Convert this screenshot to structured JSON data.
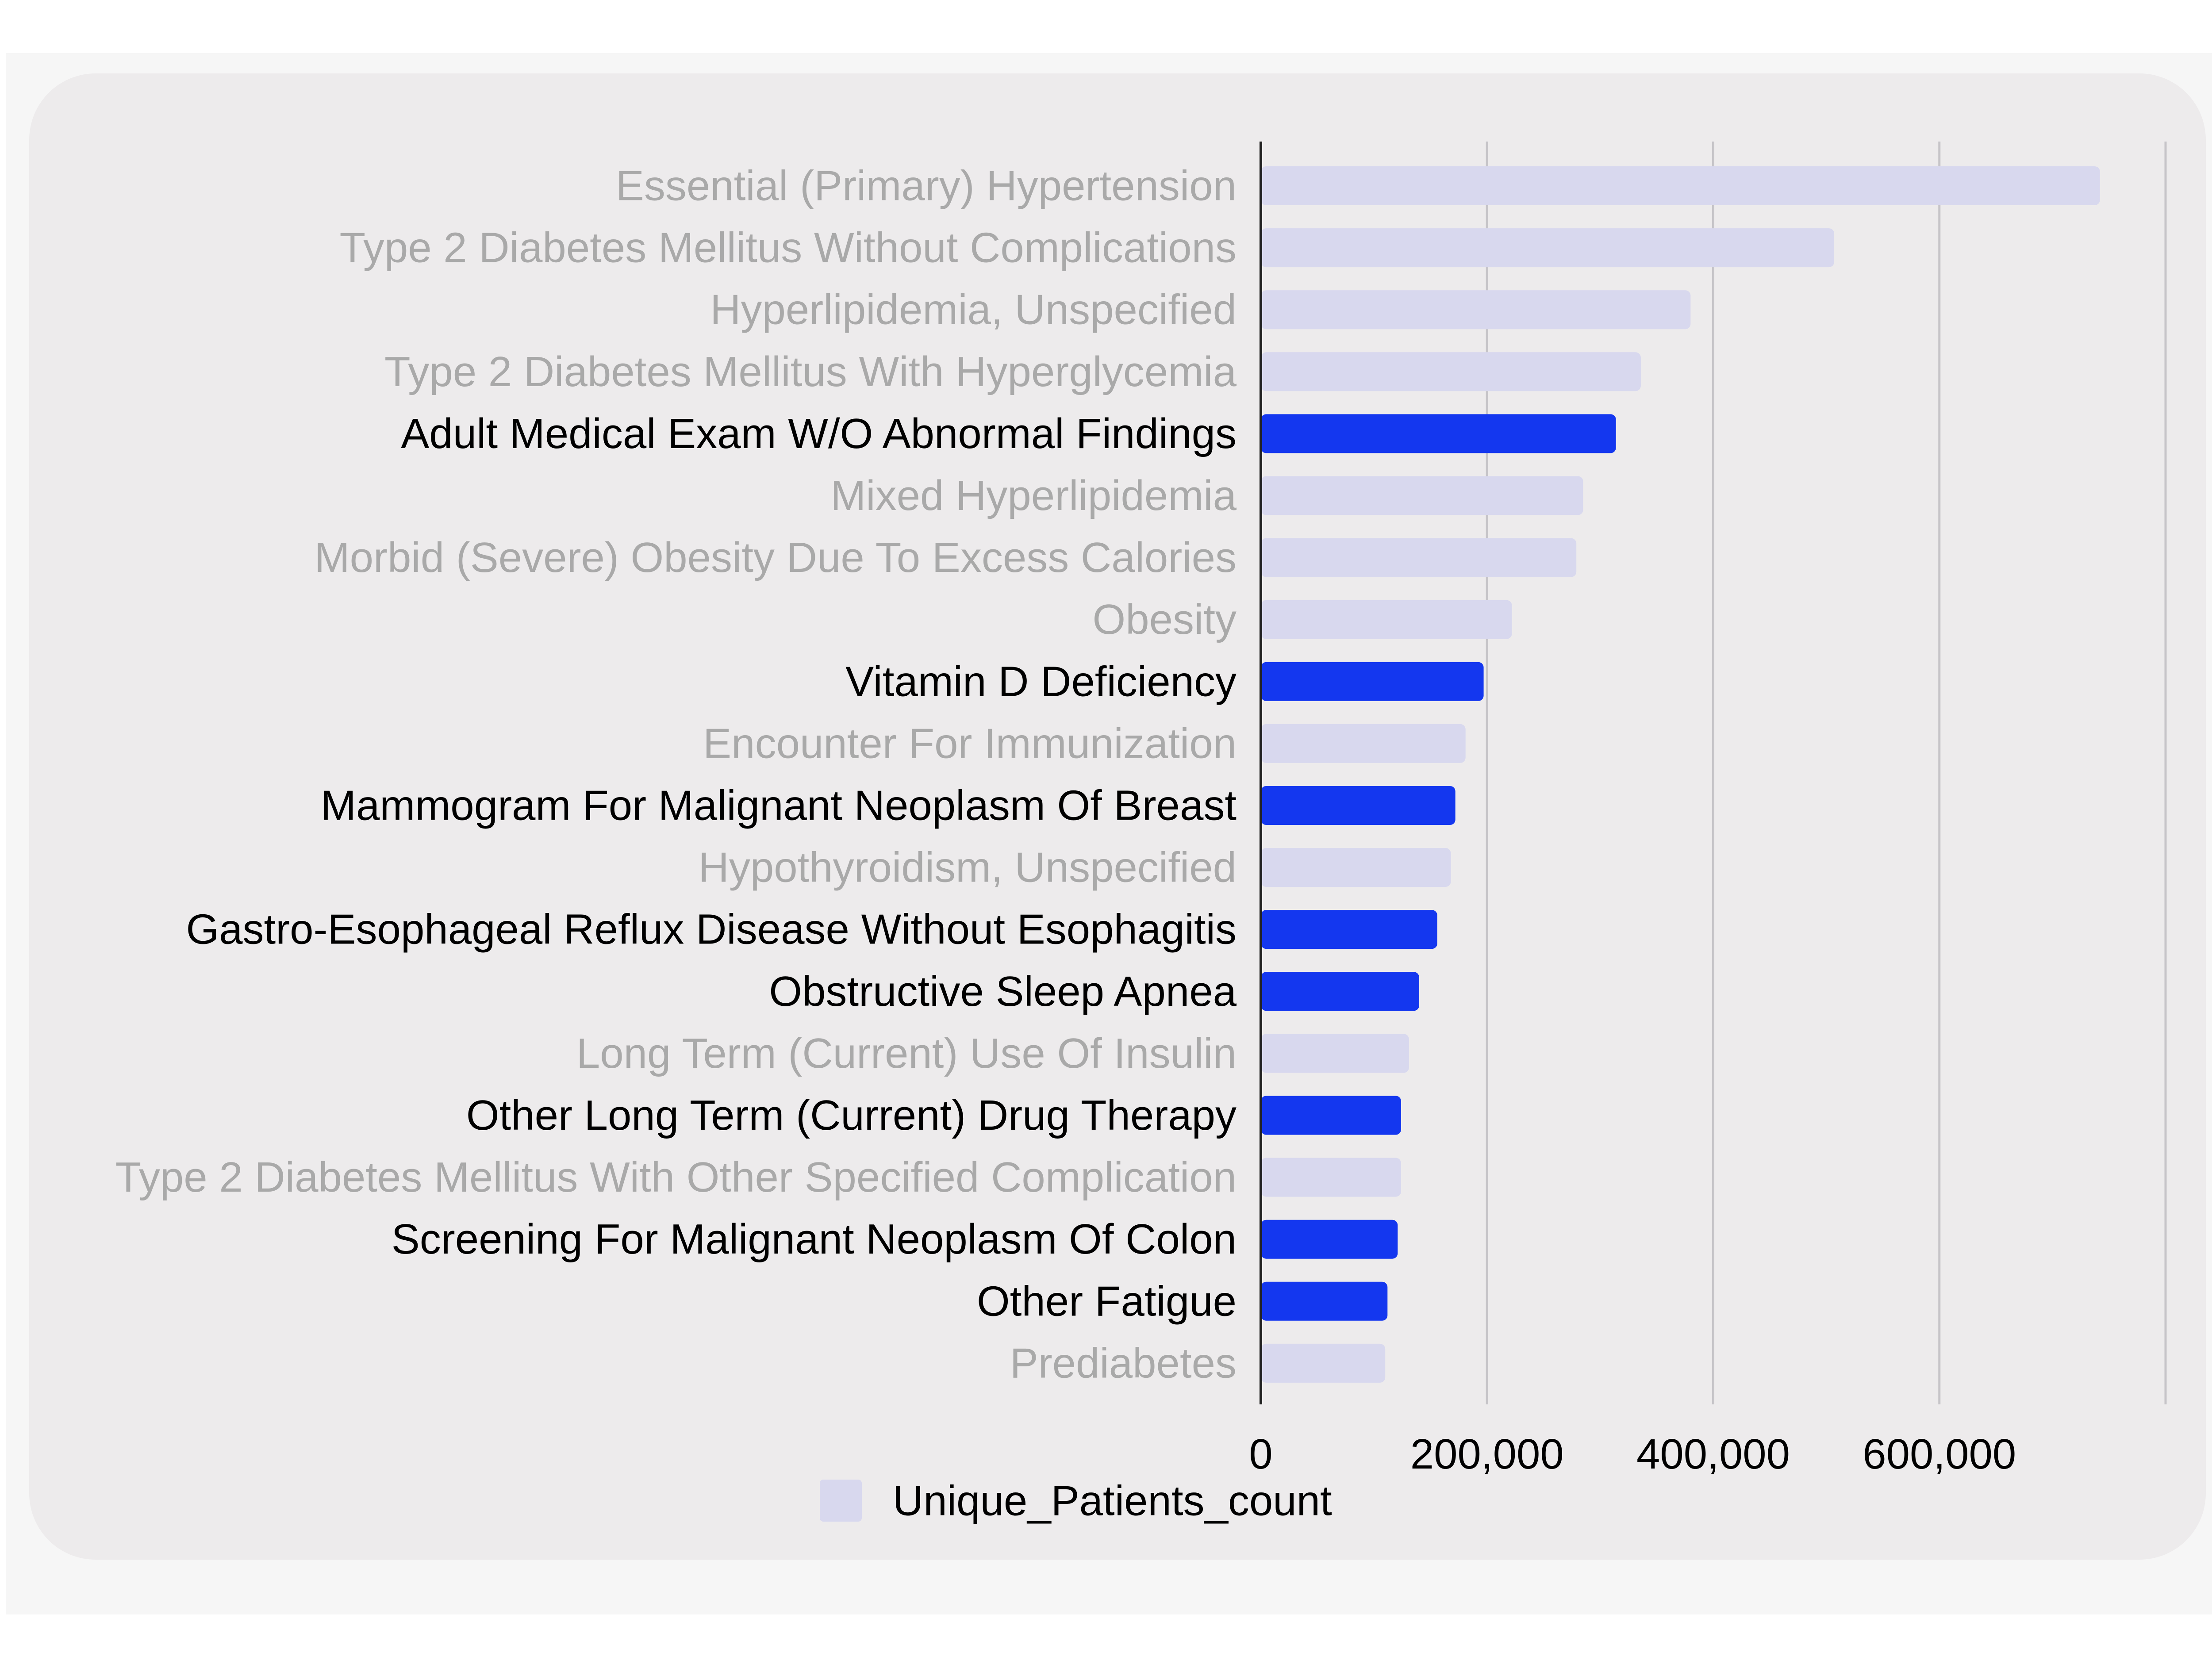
{
  "chart_data": {
    "type": "bar",
    "orientation": "horizontal",
    "categories": [
      "Essential (Primary) Hypertension",
      "Type 2 Diabetes Mellitus Without Complications",
      "Hyperlipidemia, Unspecified",
      "Type 2 Diabetes Mellitus With Hyperglycemia",
      "Adult Medical Exam W/O Abnormal Findings",
      "Mixed Hyperlipidemia",
      "Morbid (Severe) Obesity Due To Excess Calories",
      "Obesity",
      "Vitamin D Deficiency",
      "Encounter For Immunization",
      "Mammogram For Malignant Neoplasm Of Breast",
      "Hypothyroidism, Unspecified",
      "Gastro-Esophageal Reflux Disease Without Esophagitis",
      "Obstructive Sleep Apnea",
      "Long Term (Current) Use Of Insulin",
      "Other Long Term (Current) Drug Therapy",
      "Type 2 Diabetes Mellitus With Other Specified Complication",
      "Screening For Malignant Neoplasm Of Colon",
      "Other Fatigue",
      "Prediabetes"
    ],
    "series": [
      {
        "name": "Unique_Patients_count",
        "values": [
          742000,
          507000,
          380000,
          336000,
          314000,
          285000,
          279000,
          222000,
          197000,
          181000,
          172000,
          168000,
          156000,
          140000,
          131000,
          124000,
          124000,
          121000,
          112000,
          110000
        ]
      }
    ],
    "highlighted": [
      false,
      false,
      false,
      false,
      true,
      false,
      false,
      false,
      true,
      false,
      true,
      false,
      true,
      true,
      false,
      true,
      false,
      true,
      true,
      false
    ],
    "xlim": [
      0,
      800000
    ],
    "xticks": [
      0,
      200000,
      400000,
      600000
    ],
    "xtick_labels": [
      "0",
      "200,000",
      "400,000",
      "600,000"
    ],
    "gridlines": true,
    "legend": "bottom",
    "colors": {
      "highlight_bar": "#1437ef",
      "muted_bar": "#d8d8ee",
      "highlight_label": "#000000",
      "muted_label": "#a9a9a9",
      "card_background": "#edebec",
      "gridline": "#c6c4c8",
      "axis": "#222222"
    }
  }
}
